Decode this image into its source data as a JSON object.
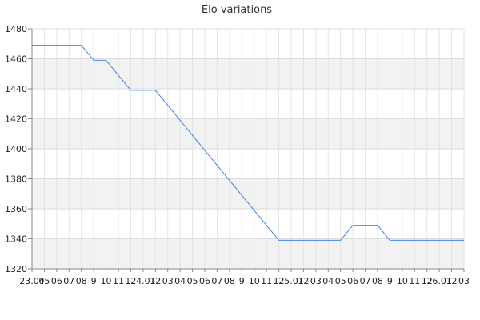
{
  "chart_data": {
    "type": "line",
    "title": "Elo variations",
    "xlabel": "",
    "ylabel": "",
    "ylim": [
      1320,
      1480
    ],
    "yticks": [
      1320,
      1340,
      1360,
      1380,
      1400,
      1420,
      1440,
      1460,
      1480
    ],
    "grid": true,
    "x_tick_labels": [
      "23.04",
      "05",
      "06",
      "07",
      "08",
      "9",
      "10",
      "11",
      "12",
      "24.01",
      "12",
      "03",
      "04",
      "05",
      "06",
      "07",
      "08",
      "9",
      "10",
      "11",
      "12",
      "25.01",
      "12",
      "03",
      "04",
      "05",
      "06",
      "07",
      "08",
      "9",
      "10",
      "11",
      "12",
      "26.01",
      "12",
      "03"
    ],
    "series": [
      {
        "values": [
          1469,
          1469,
          1469,
          1469,
          1469,
          1459,
          1459,
          1449,
          1439,
          1439,
          1439,
          1429,
          1419,
          1409,
          1399,
          1389,
          1379,
          1369,
          1359,
          1349,
          1339,
          1339,
          1339,
          1339,
          1339,
          1339,
          1349,
          1349,
          1349,
          1339,
          1339,
          1339,
          1339,
          1339,
          1339,
          1339
        ],
        "color": "#4a86e8"
      }
    ]
  }
}
